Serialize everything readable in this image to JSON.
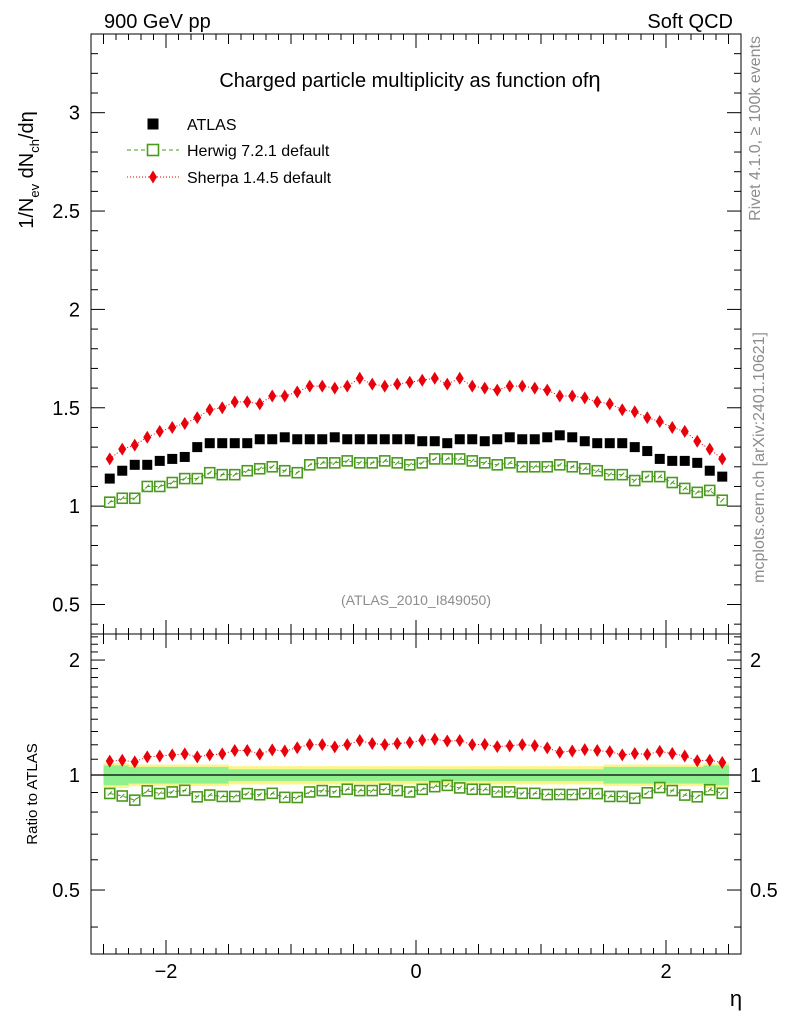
{
  "header": {
    "left": "900 GeV pp",
    "right": "Soft QCD"
  },
  "side_text": {
    "rivet": "Rivet 4.1.0, ≥ 100k events",
    "mcplots": "mcplots.cern.ch [arXiv:2401.10621]"
  },
  "chart_data": {
    "type": "scatter",
    "title": "Charged particle multiplicity as function of η",
    "title_text": "Charged particle multiplicity as function of",
    "title_symbol": "η",
    "analysis_id": "(ATLAS_2010_I849050)",
    "xlabel": "η",
    "ylabel": "1/N_ev dN_ch/dη",
    "ylabel_parts": {
      "a": "1/N",
      "a_sub": "ev",
      "b": " dN",
      "b_sub": "ch",
      "c": "/dη"
    },
    "ratio_ylabel": "Ratio to ATLAS",
    "xlim": [
      -2.6,
      2.6
    ],
    "main_ylim": [
      0.35,
      3.4
    ],
    "ratio_ylim": [
      0.34,
      2.34
    ],
    "x_ticks": [
      -2,
      0,
      2
    ],
    "x_tick_labels": [
      "−2",
      "0",
      "2"
    ],
    "main_y_ticks": [
      0.5,
      1,
      1.5,
      2,
      2.5,
      3
    ],
    "main_y_tick_labels": [
      "0.5",
      "1",
      "1.5",
      "2",
      "2.5",
      "3"
    ],
    "ratio_y_ticks": [
      0.5,
      1,
      2
    ],
    "ratio_y_tick_labels": [
      "0.5",
      "1",
      "2"
    ],
    "legend": [
      {
        "name": "ATLAS",
        "marker": "square",
        "color": "#000000"
      },
      {
        "name": "Herwig 7.2.1 default",
        "marker": "open-square",
        "color": "#4a9a1e"
      },
      {
        "name": "Sherpa 1.4.5 default",
        "marker": "diamond",
        "color": "#e8000b"
      }
    ],
    "band_colors": {
      "inner": "#8ff08f",
      "outer": "#fbf48a"
    },
    "x": [
      -2.45,
      -2.35,
      -2.25,
      -2.15,
      -2.05,
      -1.95,
      -1.85,
      -1.75,
      -1.65,
      -1.55,
      -1.45,
      -1.35,
      -1.25,
      -1.15,
      -1.05,
      -0.95,
      -0.85,
      -0.75,
      -0.65,
      -0.55,
      -0.45,
      -0.35,
      -0.25,
      -0.15,
      -0.05,
      0.05,
      0.15,
      0.25,
      0.35,
      0.45,
      0.55,
      0.65,
      0.75,
      0.85,
      0.95,
      1.05,
      1.15,
      1.25,
      1.35,
      1.45,
      1.55,
      1.65,
      1.75,
      1.85,
      1.95,
      2.05,
      2.15,
      2.25,
      2.35,
      2.45
    ],
    "series": [
      {
        "name": "ATLAS",
        "values": [
          1.14,
          1.18,
          1.21,
          1.21,
          1.23,
          1.24,
          1.25,
          1.3,
          1.32,
          1.32,
          1.32,
          1.32,
          1.34,
          1.34,
          1.35,
          1.34,
          1.34,
          1.34,
          1.35,
          1.34,
          1.34,
          1.34,
          1.34,
          1.34,
          1.34,
          1.33,
          1.33,
          1.32,
          1.34,
          1.34,
          1.33,
          1.34,
          1.35,
          1.34,
          1.34,
          1.35,
          1.36,
          1.35,
          1.33,
          1.32,
          1.32,
          1.32,
          1.3,
          1.28,
          1.24,
          1.23,
          1.23,
          1.22,
          1.18,
          1.15
        ]
      },
      {
        "name": "Herwig 7.2.1 default",
        "values": [
          1.02,
          1.04,
          1.04,
          1.1,
          1.1,
          1.12,
          1.14,
          1.14,
          1.17,
          1.16,
          1.16,
          1.18,
          1.19,
          1.2,
          1.18,
          1.17,
          1.21,
          1.22,
          1.22,
          1.23,
          1.22,
          1.22,
          1.23,
          1.22,
          1.21,
          1.22,
          1.24,
          1.24,
          1.24,
          1.23,
          1.22,
          1.21,
          1.22,
          1.2,
          1.2,
          1.2,
          1.21,
          1.2,
          1.19,
          1.18,
          1.16,
          1.16,
          1.13,
          1.15,
          1.15,
          1.12,
          1.09,
          1.07,
          1.08,
          1.03
        ]
      },
      {
        "name": "Sherpa 1.4.5 default",
        "values": [
          1.24,
          1.29,
          1.31,
          1.35,
          1.38,
          1.4,
          1.42,
          1.45,
          1.49,
          1.5,
          1.53,
          1.53,
          1.52,
          1.56,
          1.56,
          1.58,
          1.61,
          1.61,
          1.6,
          1.61,
          1.65,
          1.62,
          1.61,
          1.62,
          1.63,
          1.64,
          1.65,
          1.62,
          1.65,
          1.61,
          1.6,
          1.59,
          1.61,
          1.61,
          1.6,
          1.59,
          1.56,
          1.56,
          1.55,
          1.53,
          1.52,
          1.49,
          1.48,
          1.45,
          1.43,
          1.4,
          1.38,
          1.33,
          1.29,
          1.24
        ]
      }
    ]
  }
}
